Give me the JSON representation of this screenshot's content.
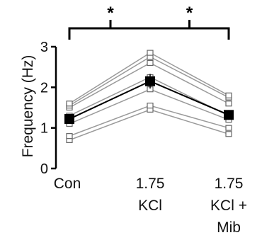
{
  "chart_data": {
    "type": "line",
    "ylabel": "Frequency (Hz)",
    "ylim": [
      0,
      3
    ],
    "yticks": [
      "0",
      "1",
      "2",
      "3"
    ],
    "categories": [
      [
        "Con"
      ],
      [
        "1.75",
        "KCl"
      ],
      [
        "1.75",
        "KCl +",
        "Mib"
      ]
    ],
    "individual_series": [
      [
        0.7,
        1.45,
        0.85
      ],
      [
        0.8,
        1.55,
        1.0
      ],
      [
        1.1,
        1.95,
        1.2
      ],
      [
        1.3,
        2.25,
        1.3
      ],
      [
        1.5,
        2.6,
        1.6
      ],
      [
        1.55,
        2.75,
        1.75
      ],
      [
        1.6,
        2.85,
        1.8
      ]
    ],
    "mean_series": {
      "values": [
        1.22,
        2.15,
        1.32
      ],
      "error": [
        0.12,
        0.18,
        0.12
      ]
    },
    "significance": {
      "marker": "*",
      "comparisons": [
        [
          "Con",
          "1.75 KCl"
        ],
        [
          "1.75 KCl",
          "1.75 KCl + Mib"
        ]
      ]
    },
    "colors": {
      "individual": "#9a9a9a",
      "mean": "#000000"
    }
  }
}
